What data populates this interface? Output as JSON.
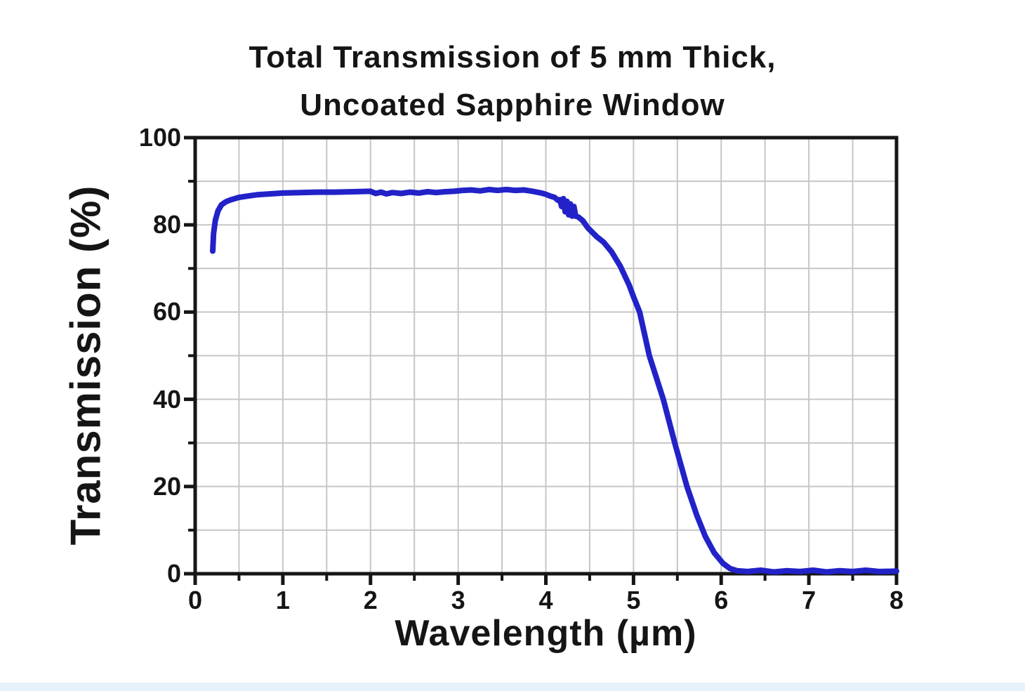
{
  "page": {
    "background": "#ffffff",
    "bottom_strip_color": "#e6f2fa"
  },
  "chart_data": {
    "type": "line",
    "title_line1": "Total Transmission of 5 mm Thick,",
    "title_line2": "Uncoated Sapphire Window",
    "xlabel": "Wavelength (µm)",
    "ylabel": "Transmission (%)",
    "xlim": [
      0,
      8
    ],
    "ylim": [
      0,
      100
    ],
    "x_major_ticks": [
      0,
      1,
      2,
      3,
      4,
      5,
      6,
      7,
      8
    ],
    "x_minor_ticks": [
      0.5,
      1.5,
      2.5,
      3.5,
      4.5,
      5.5,
      6.5,
      7.5
    ],
    "y_major_ticks": [
      0,
      20,
      40,
      60,
      80,
      100
    ],
    "y_minor_ticks": [
      10,
      30,
      50,
      70,
      90
    ],
    "x_grid": [
      0.5,
      1,
      1.5,
      2,
      2.5,
      3,
      3.5,
      4,
      4.5,
      5,
      5.5,
      6,
      6.5,
      7,
      7.5
    ],
    "y_grid": [
      10,
      20,
      30,
      40,
      50,
      60,
      70,
      80,
      90
    ],
    "grid": true,
    "legend": "none",
    "line_color": "#2222c8",
    "grid_color": "#c6c6c6",
    "axis_color": "#161616",
    "series": [
      {
        "name": "Total transmission of 5 mm thick uncoated sapphire window",
        "points": [
          [
            0.2,
            74.0
          ],
          [
            0.21,
            78.0
          ],
          [
            0.23,
            81.0
          ],
          [
            0.26,
            83.2
          ],
          [
            0.3,
            84.6
          ],
          [
            0.35,
            85.3
          ],
          [
            0.4,
            85.7
          ],
          [
            0.5,
            86.3
          ],
          [
            0.6,
            86.6
          ],
          [
            0.7,
            86.9
          ],
          [
            0.85,
            87.1
          ],
          [
            1.0,
            87.3
          ],
          [
            1.2,
            87.4
          ],
          [
            1.4,
            87.5
          ],
          [
            1.6,
            87.5
          ],
          [
            1.8,
            87.6
          ],
          [
            2.0,
            87.7
          ],
          [
            2.06,
            87.2
          ],
          [
            2.12,
            87.5
          ],
          [
            2.18,
            87.1
          ],
          [
            2.25,
            87.4
          ],
          [
            2.35,
            87.2
          ],
          [
            2.45,
            87.5
          ],
          [
            2.55,
            87.3
          ],
          [
            2.65,
            87.6
          ],
          [
            2.75,
            87.4
          ],
          [
            2.85,
            87.6
          ],
          [
            2.95,
            87.7
          ],
          [
            3.05,
            87.9
          ],
          [
            3.15,
            88.0
          ],
          [
            3.25,
            87.8
          ],
          [
            3.35,
            88.1
          ],
          [
            3.45,
            87.9
          ],
          [
            3.55,
            88.1
          ],
          [
            3.65,
            87.9
          ],
          [
            3.75,
            88.0
          ],
          [
            3.85,
            87.7
          ],
          [
            3.95,
            87.3
          ],
          [
            4.0,
            87.0
          ],
          [
            4.05,
            86.6
          ],
          [
            4.1,
            86.3
          ],
          [
            4.14,
            85.6
          ],
          [
            4.16,
            85.8
          ],
          [
            4.18,
            84.2
          ],
          [
            4.2,
            86.0
          ],
          [
            4.22,
            83.0
          ],
          [
            4.24,
            85.4
          ],
          [
            4.26,
            82.3
          ],
          [
            4.28,
            84.8
          ],
          [
            4.3,
            82.0
          ],
          [
            4.32,
            84.2
          ],
          [
            4.34,
            82.0
          ],
          [
            4.37,
            81.8
          ],
          [
            4.42,
            81.0
          ],
          [
            4.48,
            79.3
          ],
          [
            4.58,
            77.3
          ],
          [
            4.66,
            76.0
          ],
          [
            4.75,
            73.8
          ],
          [
            4.85,
            70.5
          ],
          [
            4.95,
            66.2
          ],
          [
            5.0,
            63.5
          ],
          [
            5.07,
            60.0
          ],
          [
            5.18,
            50.0
          ],
          [
            5.34,
            40.0
          ],
          [
            5.47,
            30.0
          ],
          [
            5.61,
            20.0
          ],
          [
            5.72,
            13.5
          ],
          [
            5.82,
            8.5
          ],
          [
            5.92,
            4.8
          ],
          [
            6.02,
            2.4
          ],
          [
            6.1,
            1.2
          ],
          [
            6.18,
            0.7
          ],
          [
            6.3,
            0.5
          ],
          [
            6.45,
            0.8
          ],
          [
            6.6,
            0.4
          ],
          [
            6.75,
            0.7
          ],
          [
            6.9,
            0.5
          ],
          [
            7.05,
            0.8
          ],
          [
            7.2,
            0.4
          ],
          [
            7.35,
            0.7
          ],
          [
            7.5,
            0.5
          ],
          [
            7.65,
            0.8
          ],
          [
            7.8,
            0.5
          ],
          [
            8.0,
            0.6
          ]
        ]
      }
    ]
  }
}
